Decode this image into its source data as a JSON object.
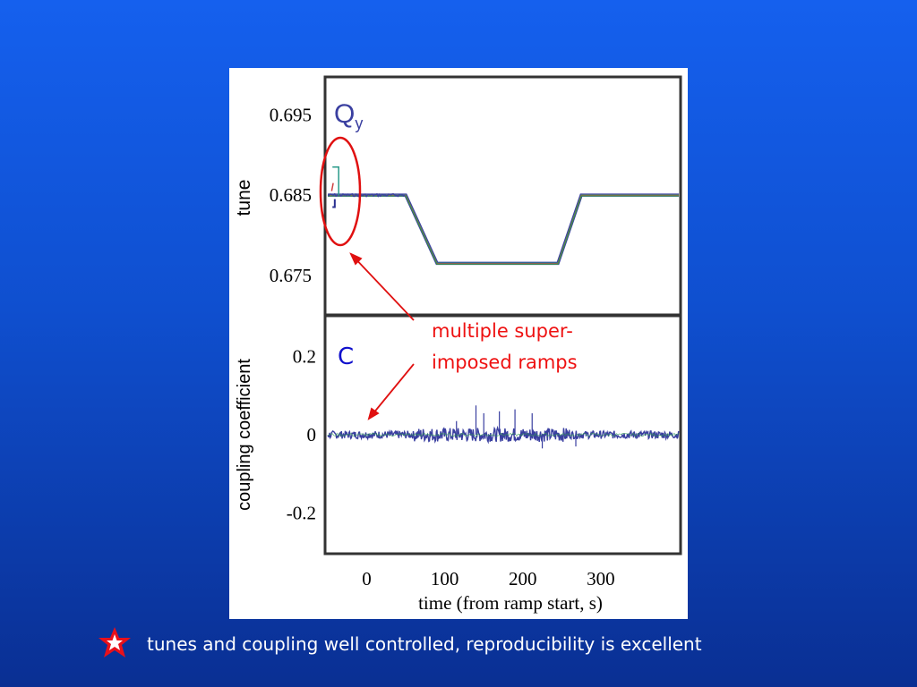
{
  "slide": {
    "background_top": "#1560ee",
    "background_bottom": "#0a2f93",
    "caption": "tunes and coupling well controlled, reproducibility is excellent",
    "bullet_icon": "star-icon",
    "bullet_colors": {
      "fill": "#e8101a",
      "star": "#ffffff"
    }
  },
  "chart_data": [
    {
      "type": "line",
      "panel": "top",
      "title": "Q",
      "title_subscript": "y",
      "ylabel": "tune",
      "yticks": [
        "0.695",
        "0.685",
        "0.675"
      ],
      "ytick_values": [
        0.695,
        0.685,
        0.675
      ],
      "ylim": [
        0.6703,
        0.6995
      ],
      "xlim": [
        -50,
        400
      ],
      "series": [
        {
          "color": "#3a3fa0",
          "x": [
            -50,
            -2,
            50,
            90,
            245,
            275,
            400
          ],
          "y": [
            0.685,
            0.685,
            0.685,
            0.6765,
            0.6765,
            0.685,
            0.685
          ]
        }
      ],
      "superimposed_colors": [
        "#3a3fa0",
        "#2a9a8a",
        "#d04040",
        "#30a040"
      ]
    },
    {
      "type": "line",
      "panel": "bottom",
      "title": "C",
      "ylabel": "coupling coefficient",
      "xlabel": "time (from ramp start, s)",
      "yticks": [
        "0.2",
        "0",
        "-0.2"
      ],
      "ytick_values": [
        0.2,
        0,
        -0.2
      ],
      "ylim": [
        -0.3,
        0.3
      ],
      "xticks": [
        "0",
        "100",
        "200",
        "300"
      ],
      "xtick_values": [
        0,
        100,
        200,
        300
      ],
      "xlim": [
        -50,
        400
      ],
      "series": [
        {
          "color": "#3a3fa0",
          "x": [
            -50,
            400
          ],
          "y": [
            0,
            0
          ],
          "noise_amplitude": 0.01
        }
      ],
      "spikes": [
        {
          "x": 115,
          "y": 0.035
        },
        {
          "x": 140,
          "y": 0.075
        },
        {
          "x": 150,
          "y": 0.055
        },
        {
          "x": 170,
          "y": 0.06
        },
        {
          "x": 190,
          "y": 0.065
        },
        {
          "x": 212,
          "y": 0.055
        },
        {
          "x": 225,
          "y": -0.035
        },
        {
          "x": 268,
          "y": -0.03
        }
      ]
    }
  ],
  "annotation": {
    "lines": [
      "multiple super-",
      "imposed ramps"
    ],
    "color": "#ee1111"
  }
}
